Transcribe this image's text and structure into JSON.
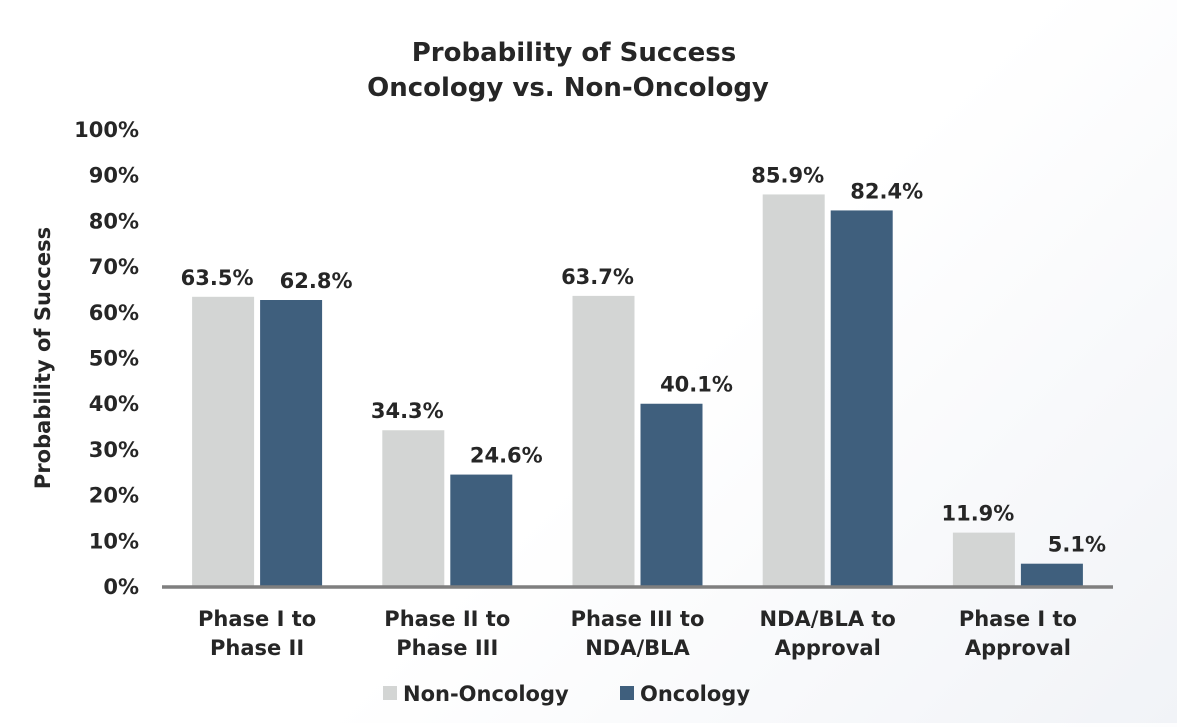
{
  "chart_data": {
    "type": "bar",
    "title_lines": [
      "Probability of Success",
      "Oncology vs. Non-Oncology"
    ],
    "ylabel": "Probability of Success",
    "xlabel": "",
    "ylim": [
      0,
      100
    ],
    "yticks": [
      "0%",
      "10%",
      "20%",
      "30%",
      "40%",
      "50%",
      "60%",
      "70%",
      "80%",
      "90%",
      "100%"
    ],
    "categories": [
      [
        "Phase I to",
        "Phase II"
      ],
      [
        "Phase II to",
        "Phase III"
      ],
      [
        "Phase III to",
        "NDA/BLA"
      ],
      [
        "NDA/BLA to",
        "Approval"
      ],
      [
        "Phase I to",
        "Approval"
      ]
    ],
    "series": [
      {
        "name": "Non-Oncology",
        "color": "#d3d5d4",
        "values": [
          63.5,
          34.3,
          63.7,
          85.9,
          11.9
        ],
        "labels": [
          "63.5%",
          "34.3%",
          "63.7%",
          "85.9%",
          "11.9%"
        ]
      },
      {
        "name": "Oncology",
        "color": "#3f5f7d",
        "values": [
          62.8,
          24.6,
          40.1,
          82.4,
          5.1
        ],
        "labels": [
          "62.8%",
          "24.6%",
          "40.1%",
          "82.4%",
          "5.1%"
        ]
      }
    ],
    "grid": false,
    "legend_position": "bottom",
    "axis_color": "#7f7f7f"
  }
}
